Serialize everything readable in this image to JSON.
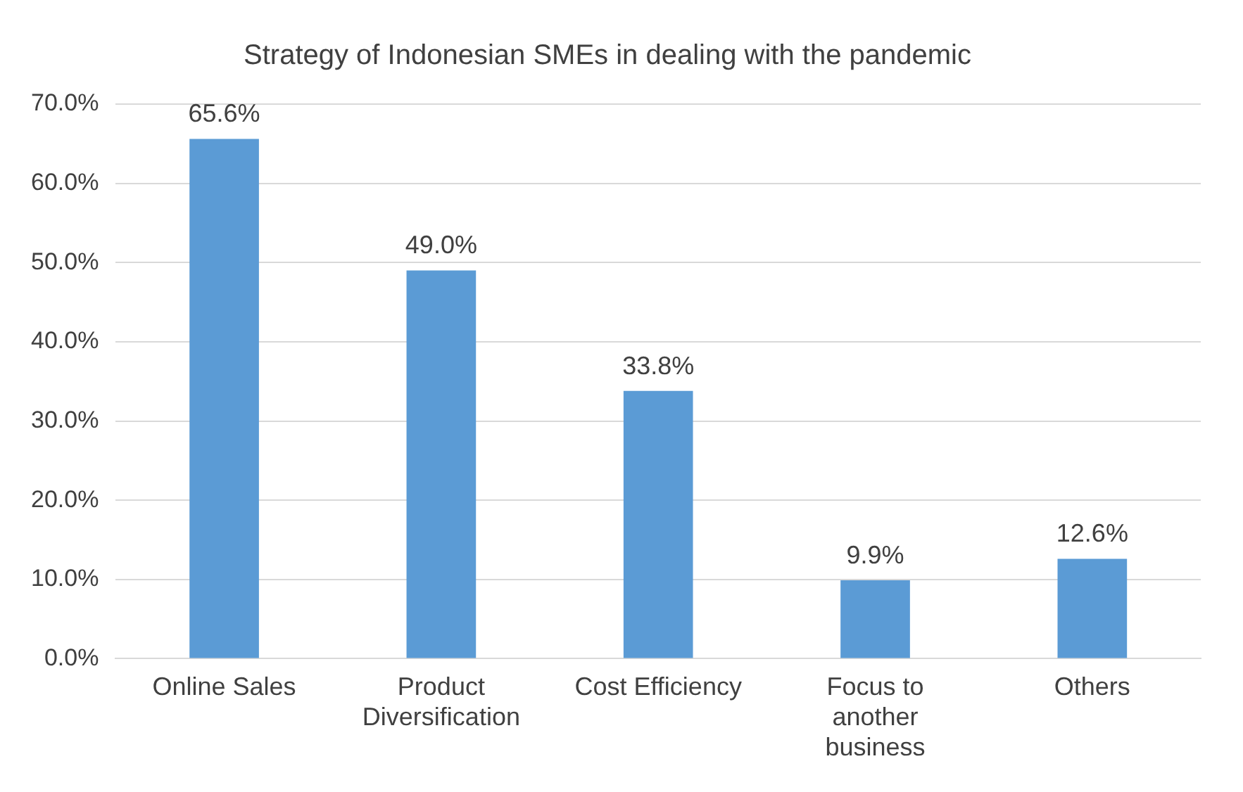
{
  "chart_data": {
    "type": "bar",
    "title": "Strategy of Indonesian SMEs in dealing with the pandemic",
    "categories": [
      "Online Sales",
      "Product Diversification",
      "Cost Efficiency",
      "Focus to another business",
      "Others"
    ],
    "values": [
      65.6,
      49.0,
      33.8,
      9.9,
      12.6
    ],
    "value_labels": [
      "65.6%",
      "49.0%",
      "33.8%",
      "9.9%",
      "12.6%"
    ],
    "color": "#5b9bd5",
    "ylim": [
      0,
      70
    ],
    "yticks": [
      {
        "value": 0,
        "label": "0.0%"
      },
      {
        "value": 10,
        "label": "10.0%"
      },
      {
        "value": 20,
        "label": "20.0%"
      },
      {
        "value": 30,
        "label": "30.0%"
      },
      {
        "value": 40,
        "label": "40.0%"
      },
      {
        "value": 50,
        "label": "50.0%"
      },
      {
        "value": 60,
        "label": "60.0%"
      },
      {
        "value": 70,
        "label": "70.0%"
      }
    ],
    "grid": "y",
    "legend": false
  }
}
